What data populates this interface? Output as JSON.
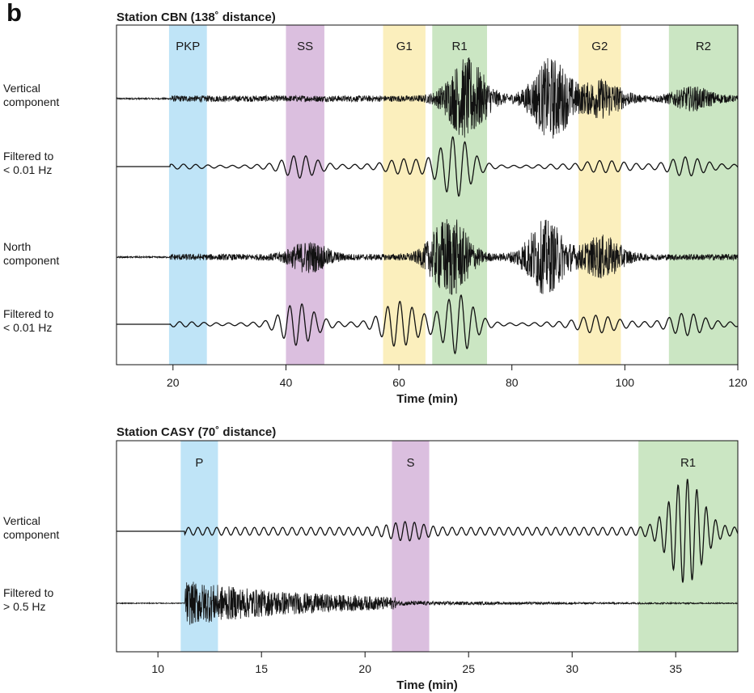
{
  "panel_letter": "b",
  "colors": {
    "blue_band": "#bfe4f7",
    "purple_band": "#dbbfdf",
    "yellow_band": "#fbefbd",
    "green_band": "#cbe6c3",
    "trace": "#111111",
    "axis": "#111111"
  },
  "chart_data": [
    {
      "type": "line",
      "title": "Station CBN (138˚ distance)",
      "xlabel": "Time (min)",
      "xlim": [
        10,
        120
      ],
      "xticks": [
        20,
        40,
        60,
        80,
        100,
        120
      ],
      "grid": false,
      "phase_bands": [
        {
          "label": "PKP",
          "start": 19.3,
          "end": 26.0,
          "color": "blue"
        },
        {
          "label": "SS",
          "start": 40.0,
          "end": 46.8,
          "color": "purple"
        },
        {
          "label": "G1",
          "start": 57.2,
          "end": 64.7,
          "color": "yellow"
        },
        {
          "label": "R1",
          "start": 65.9,
          "end": 75.6,
          "color": "green"
        },
        {
          "label": "G2",
          "start": 91.8,
          "end": 99.3,
          "color": "yellow"
        },
        {
          "label": "R2",
          "start": 107.8,
          "end": 120.0,
          "color": "green"
        }
      ],
      "traces": [
        {
          "label_lines": [
            "Vertical",
            "component"
          ],
          "kind": "broadband",
          "onset": 19.5,
          "peaks": [
            [
              72.0,
              1.0
            ],
            [
              87.0,
              1.0
            ],
            [
              96.0,
              0.45
            ],
            [
              112.0,
              0.25
            ]
          ]
        },
        {
          "label_lines": [
            "Filtered to",
            "< 0.01 Hz"
          ],
          "kind": "lowpass",
          "onset": 19.5,
          "peaks": [
            [
              43.5,
              0.45
            ],
            [
              62.0,
              0.35
            ],
            [
              69.5,
              1.0
            ],
            [
              97.0,
              0.3
            ],
            [
              112.0,
              0.4
            ]
          ]
        },
        {
          "label_lines": [
            "North",
            "component"
          ],
          "kind": "broadband",
          "onset": 19.5,
          "peaks": [
            [
              44.0,
              0.35
            ],
            [
              69.0,
              1.0
            ],
            [
              86.0,
              0.9
            ],
            [
              96.0,
              0.5
            ]
          ]
        },
        {
          "label_lines": [
            "Filtered to",
            "< 0.01 Hz"
          ],
          "kind": "lowpass",
          "onset": 19.5,
          "peaks": [
            [
              43.0,
              0.8
            ],
            [
              61.0,
              1.0
            ],
            [
              70.0,
              0.9
            ],
            [
              96.0,
              0.4
            ],
            [
              112.0,
              0.45
            ]
          ]
        }
      ]
    },
    {
      "type": "line",
      "title": "Station CASY (70˚ distance)",
      "xlabel": "Time (min)",
      "xlim": [
        8,
        38
      ],
      "xticks": [
        10,
        15,
        20,
        25,
        30,
        35
      ],
      "grid": false,
      "phase_bands": [
        {
          "label": "P",
          "start": 11.1,
          "end": 12.9,
          "color": "blue"
        },
        {
          "label": "S",
          "start": 21.3,
          "end": 23.1,
          "color": "purple"
        },
        {
          "label": "R1",
          "start": 33.2,
          "end": 38.0,
          "color": "green"
        }
      ],
      "traces": [
        {
          "label_lines": [
            "Vertical",
            "component"
          ],
          "kind": "surface",
          "onset": 11.3,
          "peaks": [
            [
              22.0,
              0.12
            ],
            [
              35.5,
              1.0
            ]
          ]
        },
        {
          "label_lines": [
            "Filtered to",
            "> 0.5 Hz"
          ],
          "kind": "highpass",
          "onset": 11.3,
          "peaks": [
            [
              12.0,
              1.0
            ]
          ]
        }
      ]
    }
  ]
}
